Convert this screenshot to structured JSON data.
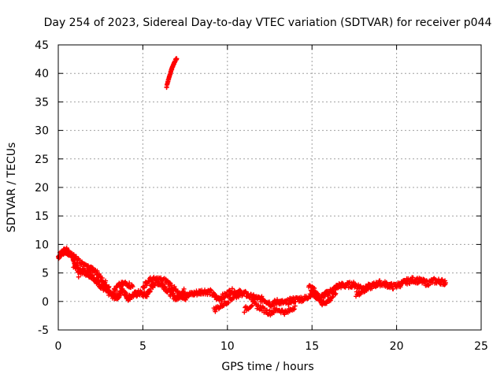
{
  "chart_data": {
    "type": "scatter",
    "title": "Day 254 of 2023, Sidereal Day-to-day VTEC variation (SDTVAR) for receiver p044",
    "xlabel": "GPS time / hours",
    "ylabel": "SDTVAR / TECUs",
    "xlim": [
      0,
      25
    ],
    "ylim": [
      -5,
      45
    ],
    "xticks": [
      0,
      5,
      10,
      15,
      20,
      25
    ],
    "yticks": [
      -5,
      0,
      5,
      10,
      15,
      20,
      25,
      30,
      35,
      40,
      45
    ],
    "grid": true,
    "legend": "none",
    "marker": "+",
    "color": "#ff0000",
    "series": [
      {
        "name": "SDTVAR",
        "approx_trace": [
          {
            "x": 0.0,
            "y": 7.8
          },
          {
            "x": 0.2,
            "y": 8.6
          },
          {
            "x": 0.4,
            "y": 8.8
          },
          {
            "x": 0.6,
            "y": 8.5
          },
          {
            "x": 0.8,
            "y": 8.2
          },
          {
            "x": 1.0,
            "y": 6.2
          },
          {
            "x": 1.2,
            "y": 5.4
          },
          {
            "x": 1.5,
            "y": 5.2
          },
          {
            "x": 1.8,
            "y": 4.8
          },
          {
            "x": 2.0,
            "y": 4.5
          },
          {
            "x": 2.3,
            "y": 3.5
          },
          {
            "x": 2.5,
            "y": 2.8
          },
          {
            "x": 2.8,
            "y": 2.0
          },
          {
            "x": 3.0,
            "y": 1.5
          },
          {
            "x": 3.3,
            "y": 0.8
          },
          {
            "x": 3.6,
            "y": 1.0
          },
          {
            "x": 3.8,
            "y": 2.2
          },
          {
            "x": 4.1,
            "y": 0.6
          },
          {
            "x": 4.5,
            "y": 1.2
          },
          {
            "x": 4.8,
            "y": 1.5
          },
          {
            "x": 5.2,
            "y": 1.0
          },
          {
            "x": 5.5,
            "y": 2.5
          },
          {
            "x": 5.8,
            "y": 3.5
          },
          {
            "x": 6.2,
            "y": 2.8
          },
          {
            "x": 6.6,
            "y": 1.5
          },
          {
            "x": 7.0,
            "y": 0.5
          },
          {
            "x": 7.4,
            "y": 1.8
          },
          {
            "x": 7.8,
            "y": 1.2
          },
          {
            "x": 8.2,
            "y": 1.5
          },
          {
            "x": 8.6,
            "y": 1.8
          },
          {
            "x": 9.0,
            "y": 1.6
          },
          {
            "x": 9.4,
            "y": 0.5
          },
          {
            "x": 9.8,
            "y": 0.9
          },
          {
            "x": 10.2,
            "y": 1.8
          },
          {
            "x": 10.6,
            "y": 1.6
          },
          {
            "x": 11.0,
            "y": 1.4
          },
          {
            "x": 11.4,
            "y": 0.8
          },
          {
            "x": 11.8,
            "y": 0.5
          },
          {
            "x": 12.2,
            "y": 0.3
          },
          {
            "x": 12.6,
            "y": -0.5
          },
          {
            "x": 13.0,
            "y": 0.0
          },
          {
            "x": 13.4,
            "y": -0.3
          },
          {
            "x": 13.8,
            "y": 0.2
          },
          {
            "x": 14.2,
            "y": 0.4
          },
          {
            "x": 14.6,
            "y": 0.5
          },
          {
            "x": 15.0,
            "y": 1.5
          },
          {
            "x": 15.4,
            "y": 0.6
          },
          {
            "x": 15.8,
            "y": 1.2
          },
          {
            "x": 16.2,
            "y": 2.0
          },
          {
            "x": 16.6,
            "y": 2.8
          },
          {
            "x": 17.0,
            "y": 2.8
          },
          {
            "x": 17.4,
            "y": 3.0
          },
          {
            "x": 17.8,
            "y": 2.6
          },
          {
            "x": 18.2,
            "y": 2.2
          },
          {
            "x": 18.6,
            "y": 2.8
          },
          {
            "x": 19.0,
            "y": 3.2
          },
          {
            "x": 19.4,
            "y": 3.0
          },
          {
            "x": 19.8,
            "y": 2.6
          },
          {
            "x": 20.2,
            "y": 3.0
          },
          {
            "x": 20.6,
            "y": 3.5
          },
          {
            "x": 21.0,
            "y": 3.8
          },
          {
            "x": 21.4,
            "y": 3.6
          },
          {
            "x": 21.8,
            "y": 3.2
          },
          {
            "x": 22.2,
            "y": 3.6
          },
          {
            "x": 22.6,
            "y": 3.5
          },
          {
            "x": 22.9,
            "y": 3.3
          }
        ],
        "secondary_traces": [
          [
            {
              "x": 0.5,
              "y": 9.0
            },
            {
              "x": 1.0,
              "y": 7.6
            },
            {
              "x": 1.4,
              "y": 6.6
            },
            {
              "x": 1.9,
              "y": 5.8
            },
            {
              "x": 2.3,
              "y": 5.0
            },
            {
              "x": 2.6,
              "y": 3.8
            },
            {
              "x": 3.0,
              "y": 2.6
            }
          ],
          [
            {
              "x": 3.2,
              "y": 1.6
            },
            {
              "x": 3.6,
              "y": 2.8
            },
            {
              "x": 4.0,
              "y": 3.2
            },
            {
              "x": 4.4,
              "y": 2.6
            }
          ],
          [
            {
              "x": 5.0,
              "y": 2.5
            },
            {
              "x": 5.4,
              "y": 3.8
            },
            {
              "x": 5.9,
              "y": 3.9
            },
            {
              "x": 6.4,
              "y": 3.6
            },
            {
              "x": 6.8,
              "y": 2.4
            },
            {
              "x": 7.2,
              "y": 1.0
            },
            {
              "x": 7.6,
              "y": 0.6
            }
          ],
          [
            {
              "x": 9.2,
              "y": -1.5
            },
            {
              "x": 9.7,
              "y": -0.6
            },
            {
              "x": 10.2,
              "y": 0.5
            },
            {
              "x": 10.7,
              "y": 1.2
            }
          ],
          [
            {
              "x": 11.0,
              "y": -1.5
            },
            {
              "x": 11.5,
              "y": -0.4
            },
            {
              "x": 12.0,
              "y": -1.2
            },
            {
              "x": 12.5,
              "y": -2.0
            },
            {
              "x": 13.0,
              "y": -1.4
            },
            {
              "x": 13.5,
              "y": -2.0
            },
            {
              "x": 14.0,
              "y": -0.8
            }
          ],
          [
            {
              "x": 14.8,
              "y": 2.6
            },
            {
              "x": 15.2,
              "y": 1.8
            },
            {
              "x": 15.6,
              "y": -0.4
            },
            {
              "x": 16.0,
              "y": 0.2
            },
            {
              "x": 16.4,
              "y": 1.4
            }
          ],
          [
            {
              "x": 17.6,
              "y": 1.2
            },
            {
              "x": 18.0,
              "y": 1.8
            },
            {
              "x": 18.4,
              "y": 2.8
            },
            {
              "x": 18.8,
              "y": 3.2
            }
          ]
        ],
        "isolated_segment": [
          {
            "x": 6.4,
            "y": 37.5
          },
          {
            "x": 6.5,
            "y": 38.8
          },
          {
            "x": 6.6,
            "y": 39.8
          },
          {
            "x": 6.7,
            "y": 40.7
          },
          {
            "x": 6.8,
            "y": 41.5
          },
          {
            "x": 6.9,
            "y": 42.2
          },
          {
            "x": 7.0,
            "y": 42.6
          }
        ],
        "outliers": [
          {
            "x": 1.2,
            "y": 4.3
          },
          {
            "x": 0.9,
            "y": 6.0
          }
        ]
      }
    ]
  }
}
